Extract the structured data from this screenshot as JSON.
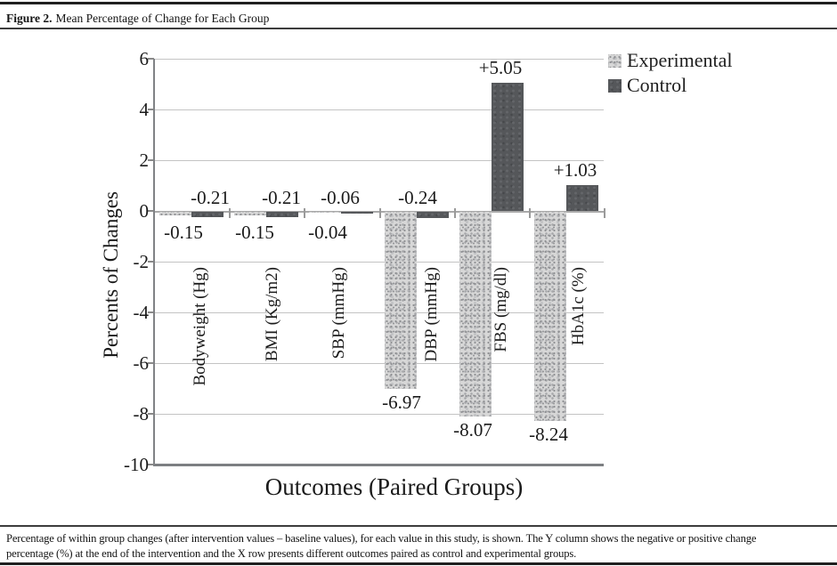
{
  "figure_header": {
    "label": "Figure 2.",
    "title": "Mean Percentage of Change for Each Group"
  },
  "chart_data": {
    "type": "bar",
    "title": "Mean Percentage of Change for Each Group",
    "categories": [
      "Bodyweight (Hg)",
      "BMI (Kg/m2)",
      "SBP (mmHg)",
      "DBP (mmHg)",
      "FBS (mg/dl)",
      "HbA1c (%)"
    ],
    "series": [
      {
        "name": "Experimental",
        "values": [
          -0.15,
          -0.15,
          -0.04,
          -6.97,
          -8.07,
          -8.24
        ],
        "labels": [
          "-0.15",
          "-0.15",
          "-0.04",
          "-6.97",
          "-8.07",
          "-8.24"
        ]
      },
      {
        "name": "Control",
        "values": [
          -0.21,
          -0.21,
          -0.06,
          -0.24,
          5.05,
          1.03
        ],
        "labels": [
          "-0.21",
          "-0.21",
          "-0.06",
          "-0.24",
          "+5.05",
          "+1.03"
        ]
      }
    ],
    "xlabel": "Outcomes (Paired Groups)",
    "ylabel": "Percents of Changes",
    "ylim": [
      -10,
      6
    ],
    "yticks": [
      6,
      4,
      2,
      0,
      -2,
      -4,
      -6,
      -8,
      -10
    ],
    "grid": true,
    "legend_position": "top-right",
    "colors": {
      "experimental_fill": "#d7d7d7",
      "control_fill": "#55575a",
      "gridline": "#c4c4c4",
      "text": "#1c1c1c"
    }
  },
  "footer_caption": {
    "line1": "Percentage of within group changes (after intervention values – baseline values), for each value in this study, is shown. The Y column shows the negative or positive change",
    "line2": "percentage (%) at the end of the intervention and the X row presents different outcomes paired as control and experimental groups."
  }
}
